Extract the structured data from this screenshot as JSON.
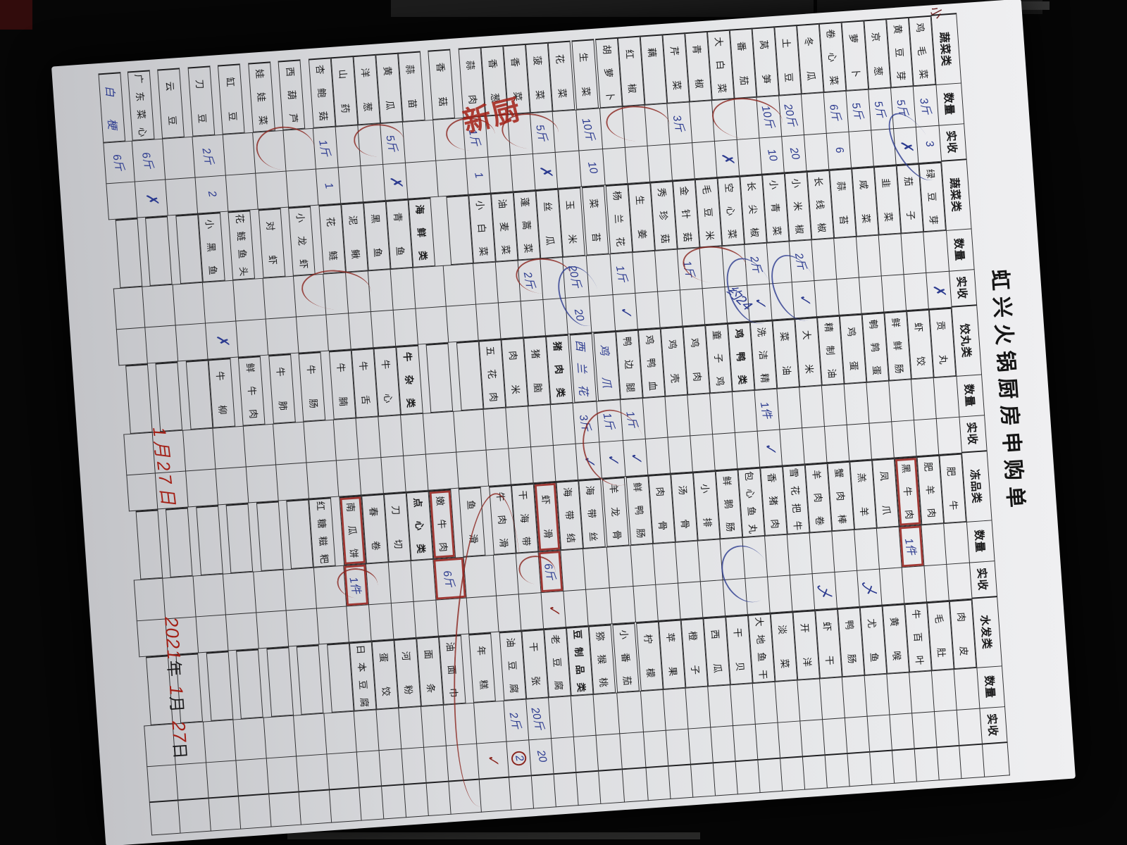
{
  "meta": {
    "title": "虹兴火锅厨房申购单"
  },
  "labels": {
    "qty": "数量",
    "recv": "实收"
  },
  "groups": [
    {
      "category": "蔬菜类",
      "rows": [
        {
          "n": "鸡毛菜",
          "q": "3斤",
          "r": "3"
        },
        {
          "n": "黄豆芽",
          "q": "5斤",
          "r": "✗"
        },
        {
          "n": "京葱",
          "q": "5斤"
        },
        {
          "n": "萝卜",
          "q": "5斤"
        },
        {
          "n": "卷心菜",
          "q": "6斤",
          "r": "6"
        },
        {
          "n": "冬瓜"
        },
        {
          "n": "土豆",
          "q": "20斤",
          "r": "20"
        },
        {
          "n": "莴笋",
          "q": "10斤",
          "r": "10"
        },
        {
          "n": "番茄"
        },
        {
          "n": "大白菜",
          "r": "✗"
        },
        {
          "n": "青椒"
        },
        {
          "n": "芹菜",
          "q": "3斤"
        },
        {
          "n": "藕"
        },
        {
          "n": "红椒"
        },
        {
          "n": "胡萝卜"
        },
        {
          "n": "生菜",
          "q": "10斤",
          "r": "10"
        },
        {
          "n": "花菜"
        },
        {
          "n": "菠菜",
          "q": "5斤",
          "r": "✗"
        },
        {
          "n": "香菜"
        },
        {
          "n": "香葱"
        },
        {
          "n": "蒜肉",
          "q": "1斤",
          "r": "1"
        },
        {
          "n": "香菇"
        },
        {
          "n": "蒜苗"
        },
        {
          "n": "黄瓜",
          "q": "5斤",
          "r": "✗"
        },
        {
          "n": "洋葱"
        },
        {
          "n": "山药"
        },
        {
          "n": "杏鲍菇",
          "q": "1斤",
          "r": "1"
        },
        {
          "n": "西葫芦"
        },
        {
          "n": "娃娃菜"
        },
        {
          "n": "缸豆"
        },
        {
          "n": "刀豆",
          "q": "2斤",
          "r": "2"
        },
        {
          "n": "云豆"
        },
        {
          "n": "广东菜心",
          "q": "6斤",
          "r": "✗"
        },
        {
          "n": "白梗",
          "h": true,
          "q": "6斤"
        }
      ]
    },
    {
      "category": "蔬菜类",
      "rows": [
        {
          "n": "绿豆芽",
          "r": "✗"
        },
        {
          "n": "茄子"
        },
        {
          "n": "韭菜"
        },
        {
          "n": "咸菜"
        },
        {
          "n": "蒜苔"
        },
        {
          "n": "长线椒"
        },
        {
          "n": "小米椒",
          "q": "2斤",
          "r": "✓"
        },
        {
          "n": "小青菜"
        },
        {
          "n": "长尖椒",
          "q": "2斤",
          "r": "✓"
        },
        {
          "n": "空心菜"
        },
        {
          "n": "毛豆米"
        },
        {
          "n": "金针菇",
          "q": "1斤"
        },
        {
          "n": "秀珍菇"
        },
        {
          "n": "生姜"
        },
        {
          "n": "杨兰花",
          "q": "1斤",
          "r": "✓"
        },
        {
          "n": "菜苔"
        },
        {
          "n": "玉米",
          "q": "20斤",
          "r": "20"
        },
        {
          "n": "丝瓜"
        },
        {
          "n": "蓬蒿菜",
          "q": "2斤"
        },
        {
          "n": "油麦菜"
        },
        {
          "n": "小白菜"
        },
        {},
        {
          "n": "海鲜类",
          "s": true
        },
        {
          "n": "青鱼"
        },
        {
          "n": "黑鱼"
        },
        {
          "n": "泥鳅"
        },
        {
          "n": "花鲢"
        },
        {
          "n": "小龙虾"
        },
        {
          "n": "对虾"
        },
        {
          "n": "花鲢鱼头"
        },
        {
          "n": "小黑鱼",
          "r": "✗"
        },
        {},
        {},
        {}
      ]
    },
    {
      "category": "饺丸类",
      "rows": [
        {
          "n": "贡丸"
        },
        {
          "n": "虾饺"
        },
        {
          "n": "鲜鲜肠"
        },
        {
          "n": "鹌鹑蛋"
        },
        {
          "n": "鸡蛋"
        },
        {
          "n": "精制油"
        },
        {
          "n": "大米"
        },
        {
          "n": "菜油"
        },
        {
          "n": "洗洁精",
          "q": "1件",
          "r": "✓"
        },
        {
          "n": "鸡鸭类",
          "s": true
        },
        {
          "n": "童子鸡"
        },
        {
          "n": "鸡肉"
        },
        {
          "n": "鸡壳"
        },
        {
          "n": "鸡鸭血"
        },
        {
          "n": "鸭边腿",
          "q": "1斤",
          "r": "✓"
        },
        {
          "n": "鸡爪",
          "h": true,
          "q": "1斤",
          "r": "✓"
        },
        {
          "n": "西兰花",
          "h": true,
          "q": "3斤",
          "r": "✓"
        },
        {
          "n": "猪肉类",
          "s": true
        },
        {
          "n": "猪脑"
        },
        {
          "n": "肉米"
        },
        {
          "n": "五花肉"
        },
        {},
        {},
        {
          "n": "牛杂类",
          "s": true
        },
        {
          "n": "牛心"
        },
        {
          "n": "牛舌"
        },
        {
          "n": "牛腩"
        },
        {
          "n": "牛肠"
        },
        {
          "n": "牛肺"
        },
        {
          "n": "鲜牛肉"
        },
        {
          "n": "牛柳"
        },
        {},
        {},
        {}
      ]
    },
    {
      "category": "冻品类",
      "rows": [
        {
          "n": "肥牛"
        },
        {
          "n": "肥羊肉"
        },
        {
          "n": "黑牛肉",
          "b": true,
          "q": "1件"
        },
        {
          "n": "凤爪"
        },
        {
          "n": "羔羊",
          "r": "乄"
        },
        {
          "n": "蟹肉棒"
        },
        {
          "n": "羊肉卷",
          "r": "乄"
        },
        {
          "n": "雪花把牛"
        },
        {
          "n": "香猪肉"
        },
        {
          "n": "包心鱼丸"
        },
        {
          "n": "鲜鹅肠"
        },
        {
          "n": "小排"
        },
        {
          "n": "汤骨"
        },
        {
          "n": "肉骨"
        },
        {
          "n": "鲜鸭肠"
        },
        {
          "n": "羊龙骨"
        },
        {
          "n": "海带丝"
        },
        {
          "n": "海带结"
        },
        {
          "n": "虾滑",
          "b": true,
          "q": "6斤",
          "r": "✓",
          "rc": true
        },
        {
          "n": "干海带"
        },
        {
          "n": "牛肉滑"
        },
        {
          "n": "鱼滑"
        },
        {
          "n": "嫩牛肉",
          "b": true,
          "q": "6斤"
        },
        {
          "n": "点心类",
          "s": true
        },
        {
          "n": "刀切"
        },
        {
          "n": "春卷"
        },
        {
          "n": "南瓜饼",
          "b": true,
          "q": "1件"
        },
        {
          "n": "红糖糍粑"
        },
        {},
        {},
        {},
        {},
        {},
        {}
      ]
    },
    {
      "category": "水发类",
      "rows": [
        {
          "n": "肉皮"
        },
        {
          "n": "毛肚"
        },
        {
          "n": "牛百叶"
        },
        {
          "n": "黄喉"
        },
        {
          "n": "尤鱼"
        },
        {
          "n": "鸭肠"
        },
        {
          "n": "虾干"
        },
        {
          "n": "开洋"
        },
        {
          "n": "淡菜"
        },
        {
          "n": "大地鱼干"
        },
        {
          "n": "干贝"
        },
        {
          "n": "西瓜"
        },
        {
          "n": "橙子"
        },
        {
          "n": "苹果"
        },
        {
          "n": "柠檬"
        },
        {
          "n": "小番茄"
        },
        {
          "n": "猕猴桃"
        },
        {
          "n": "豆制品类",
          "s": true
        },
        {
          "n": "老豆腐"
        },
        {
          "n": "干张",
          "q": "20斤",
          "r": "20"
        },
        {
          "n": "油豆腐",
          "q": "2斤",
          "r": "2",
          "ci": true
        },
        {
          "n": "年糕",
          "r": "✓",
          "rc": true
        },
        {
          "n": "油面巾"
        },
        {
          "n": "面条"
        },
        {
          "n": "河粉"
        },
        {
          "n": "蛋饺"
        },
        {
          "n": "日本豆腐"
        },
        {},
        {},
        {},
        {},
        {},
        {},
        {}
      ]
    }
  ],
  "annotations": {
    "kitchen_note": "新厨",
    "corner_note": "小",
    "diagonal_note": "约24",
    "date_note": "1月27日"
  },
  "footer": {
    "year_value": "2021",
    "year_label": "年",
    "month_value": "1",
    "month_label": "月",
    "day_value": "27",
    "day_label": "日"
  }
}
